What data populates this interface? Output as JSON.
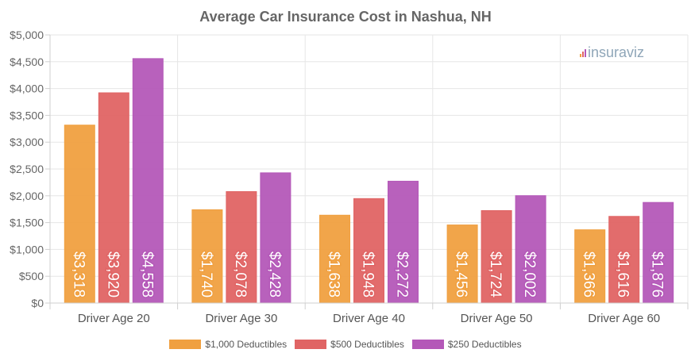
{
  "chart_data": {
    "type": "bar",
    "title": "Average Car Insurance Cost in Nashua, NH",
    "categories": [
      "Driver Age 20",
      "Driver Age 30",
      "Driver Age 40",
      "Driver Age 50",
      "Driver Age 60"
    ],
    "series": [
      {
        "name": "$1,000 Deductibles",
        "color": "#f0a040",
        "values": [
          3318,
          1740,
          1638,
          1456,
          1366
        ],
        "labels": [
          "$3,318",
          "$1,740",
          "$1,638",
          "$1,456",
          "$1,366"
        ]
      },
      {
        "name": "$500 Deductibles",
        "color": "#e06464",
        "values": [
          3920,
          2078,
          1948,
          1724,
          1616
        ],
        "labels": [
          "$3,920",
          "$2,078",
          "$1,948",
          "$1,724",
          "$1,616"
        ]
      },
      {
        "name": "$250 Deductibles",
        "color": "#b458b8",
        "values": [
          4558,
          2428,
          2272,
          2002,
          1876
        ],
        "labels": [
          "$4,558",
          "$2,428",
          "$2,272",
          "$2,002",
          "$1,876"
        ]
      }
    ],
    "ylim": [
      0,
      5000
    ],
    "yticks": [
      0,
      500,
      1000,
      1500,
      2000,
      2500,
      3000,
      3500,
      4000,
      4500,
      5000
    ],
    "ytick_labels": [
      "$0",
      "$500",
      "$1,000",
      "$1,500",
      "$2,000",
      "$2,500",
      "$3,000",
      "$3,500",
      "$4,000",
      "$4,500",
      "$5,000"
    ],
    "grid": true,
    "legend_position": "bottom"
  },
  "watermark": {
    "text": "insuraviz"
  }
}
